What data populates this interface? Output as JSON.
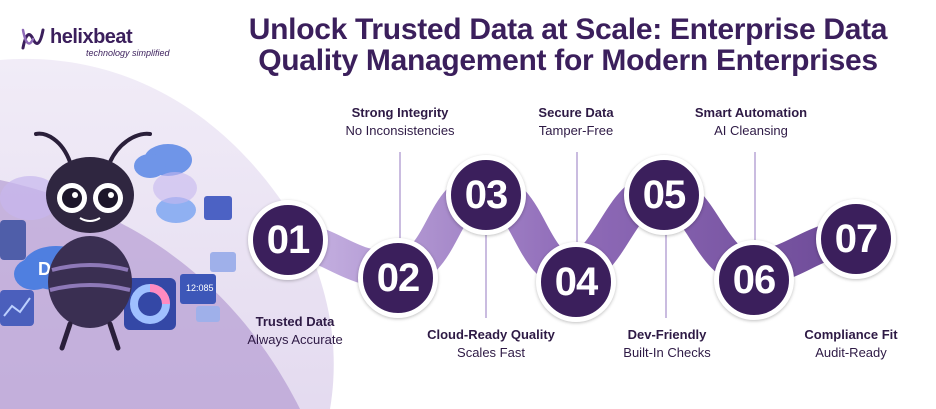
{
  "logo": {
    "wordmark": "helixbeat",
    "tagline": "technology simplified"
  },
  "title": {
    "line1": "Unlock Trusted Data at Scale: Enterprise Data",
    "line2": "Quality Management for Modern Enterprises"
  },
  "mascot": {
    "badge": "DAs",
    "readout": "12:085"
  },
  "steps": [
    {
      "number": "01",
      "heading": "Trusted Data",
      "subtext": "Always Accurate"
    },
    {
      "number": "02",
      "heading": "Strong Integrity",
      "subtext": "No Inconsistencies"
    },
    {
      "number": "03",
      "heading": "Cloud-Ready Quality",
      "subtext": "Scales Fast"
    },
    {
      "number": "04",
      "heading": "Secure Data",
      "subtext": "Tamper-Free"
    },
    {
      "number": "05",
      "heading": "Dev-Friendly",
      "subtext": "Built-In Checks"
    },
    {
      "number": "06",
      "heading": "Smart Automation",
      "subtext": "AI Cleansing"
    },
    {
      "number": "07",
      "heading": "Compliance Fit",
      "subtext": "Audit-Ready"
    }
  ],
  "colors": {
    "dark_purple": "#3b1f5c",
    "mid_purple": "#7a5a9e",
    "light_purple": "#b9a6d6",
    "pale_purple": "#ece6f5"
  }
}
